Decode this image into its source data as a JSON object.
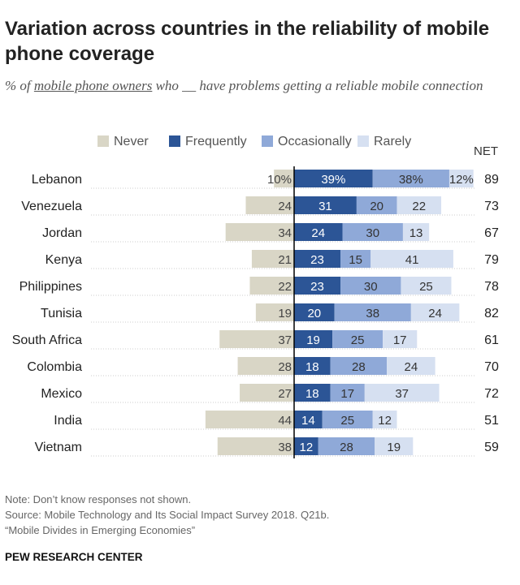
{
  "title": "Variation across countries in the reliability of mobile phone coverage",
  "subtitle": {
    "pre": "% of ",
    "underlined": "mobile phone owners",
    "post": " who __ have problems getting a reliable mobile connection"
  },
  "net_label": "NET",
  "notes": {
    "note": "Note: Don’t know responses not shown.",
    "source": "Source: Mobile Technology and Its Social Impact Survey 2018. Q21b.",
    "report": "“Mobile Divides in Emerging Economies”"
  },
  "footer": "PEW RESEARCH CENTER",
  "colors": {
    "never": "#d9d6c6",
    "frequently": "#2c5596",
    "occasionally": "#8fa9d8",
    "rarely": "#d6e0f1",
    "axis": "#000000",
    "gridline": "#cccccc"
  },
  "chart_data": {
    "type": "bar",
    "orientation": "horizontal-diverging",
    "categories": [
      "Lebanon",
      "Venezuela",
      "Jordan",
      "Kenya",
      "Philippines",
      "Tunisia",
      "South Africa",
      "Colombia",
      "Mexico",
      "India",
      "Vietnam"
    ],
    "series": [
      {
        "name": "Never",
        "side": "left",
        "values": [
          10,
          24,
          34,
          21,
          22,
          19,
          37,
          28,
          27,
          44,
          38
        ]
      },
      {
        "name": "Frequently",
        "side": "right",
        "values": [
          39,
          31,
          24,
          23,
          23,
          20,
          19,
          18,
          18,
          14,
          12
        ]
      },
      {
        "name": "Occasionally",
        "side": "right",
        "values": [
          38,
          20,
          30,
          15,
          30,
          38,
          25,
          28,
          17,
          25,
          28
        ]
      },
      {
        "name": "Rarely",
        "side": "right",
        "values": [
          12,
          22,
          13,
          41,
          25,
          24,
          17,
          24,
          37,
          12,
          19
        ]
      }
    ],
    "net": [
      89,
      73,
      67,
      79,
      78,
      82,
      61,
      70,
      72,
      51,
      59
    ],
    "first_row_suffix": "%",
    "legend_position": "top",
    "unit": "%"
  }
}
